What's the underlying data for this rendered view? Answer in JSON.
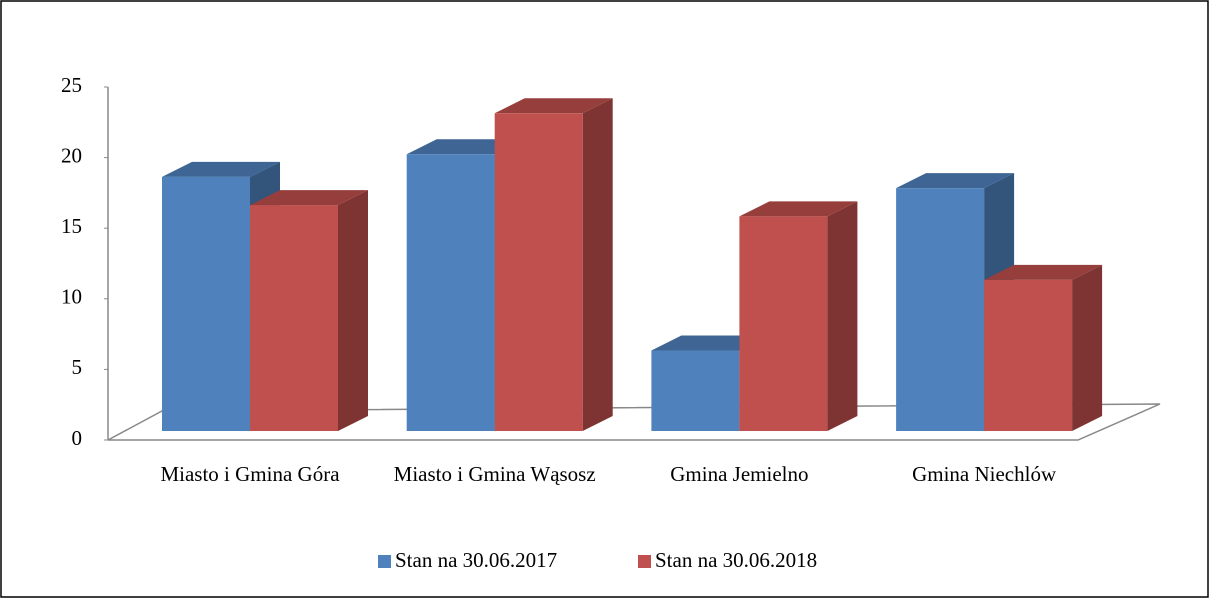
{
  "chart_data": {
    "type": "bar3d",
    "categories": [
      "Miasto i Gmina Góra",
      "Miasto i Gmina Wąsosz",
      "Gmina Jemielno",
      "Gmina Niechlów"
    ],
    "series": [
      {
        "name": "Stan na 30.06.2017",
        "color": "#4f81bd",
        "values": [
          18,
          19.6,
          5.7,
          17.2
        ]
      },
      {
        "name": "Stan na 30.06.2018",
        "color": "#c0504d",
        "values": [
          16,
          22.5,
          15.2,
          10.7
        ]
      }
    ],
    "ylim": [
      0,
      25
    ],
    "yticks": [
      0,
      5,
      10,
      15,
      20,
      25
    ],
    "legend": "bottom"
  }
}
